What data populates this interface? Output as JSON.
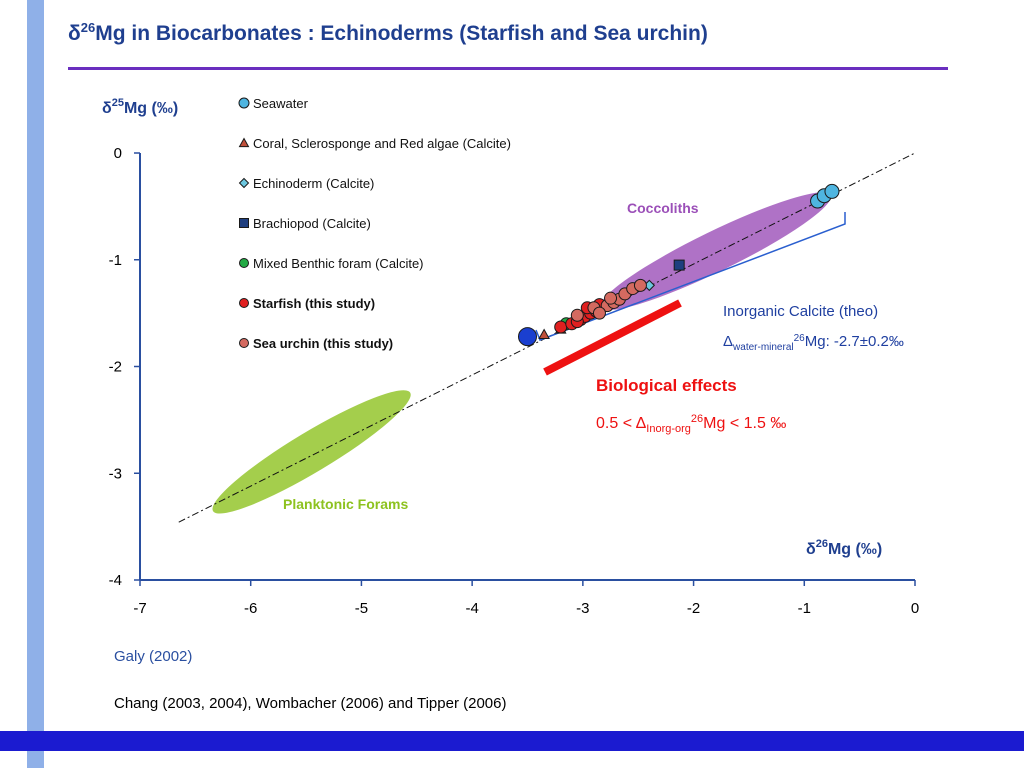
{
  "title": {
    "delta": "δ",
    "sup": "26",
    "rest": "Mg in Biocarbonates : Echinoderms (Starfish and Sea urchin)"
  },
  "references": [
    "Galy (2002)",
    "Chang (2003, 2004), Wombacher (2006) and Tipper (2006)"
  ],
  "chart_data": {
    "type": "scatter",
    "title": "δ26Mg in Biocarbonates : Echinoderms (Starfish and Sea urchin)",
    "xlabel": {
      "pre": "δ",
      "sup": "26",
      "post": "Mg (‰)"
    },
    "ylabel": {
      "pre": "δ",
      "sup": "25",
      "post": "Mg (‰)"
    },
    "xlim": [
      -7,
      0
    ],
    "ylim": [
      -4,
      0
    ],
    "xticks": [
      -7,
      -6,
      -5,
      -4,
      -3,
      -2,
      -1,
      0
    ],
    "yticks": [
      0,
      -1,
      -2,
      -3,
      -4
    ],
    "grid": false,
    "legend_position": "top-left",
    "reference_line": {
      "style": "dash-dot",
      "slope": 0.52,
      "x_range": [
        -6.65,
        0
      ]
    },
    "series": [
      {
        "name": "Seawater",
        "marker": "circle",
        "color": "#4fb5e0",
        "points": [
          [
            -0.88,
            -0.45
          ],
          [
            -0.82,
            -0.4
          ],
          [
            -0.75,
            -0.36
          ]
        ]
      },
      {
        "name": "Coral, Sclerosponge and Red algae  (Calcite)",
        "marker": "triangle",
        "color": "#c0503a",
        "points": [
          [
            -3.35,
            -1.7
          ],
          [
            -3.2,
            -1.65
          ]
        ]
      },
      {
        "name": "Echinoderm (Calcite)",
        "marker": "diamond",
        "color": "#6cc7df",
        "points": [
          [
            -2.4,
            -1.24
          ]
        ]
      },
      {
        "name": "Brachiopod (Calcite)",
        "marker": "square",
        "color": "#1f3f7f",
        "points": [
          [
            -2.13,
            -1.05
          ]
        ]
      },
      {
        "name": "Mixed Benthic foram (Calcite)",
        "marker": "circle",
        "color": "#22aa44",
        "points": [
          [
            -3.15,
            -1.6
          ]
        ]
      },
      {
        "name": "Starfish (this study)",
        "marker": "circle",
        "color": "#e02020",
        "points": [
          [
            -3.2,
            -1.63
          ],
          [
            -3.1,
            -1.6
          ],
          [
            -3.02,
            -1.56
          ],
          [
            -2.98,
            -1.53
          ],
          [
            -2.93,
            -1.5
          ],
          [
            -3.05,
            -1.58
          ],
          [
            -2.88,
            -1.48
          ],
          [
            -2.96,
            -1.45
          ],
          [
            -2.85,
            -1.42
          ]
        ]
      },
      {
        "name": "Sea urchin (this study)",
        "marker": "circle",
        "color": "#d46a60",
        "points": [
          [
            -2.9,
            -1.45
          ],
          [
            -2.78,
            -1.43
          ],
          [
            -2.72,
            -1.4
          ],
          [
            -2.67,
            -1.37
          ],
          [
            -2.62,
            -1.32
          ],
          [
            -2.55,
            -1.27
          ],
          [
            -2.48,
            -1.24
          ],
          [
            -2.85,
            -1.5
          ],
          [
            -2.75,
            -1.36
          ],
          [
            -3.05,
            -1.52
          ]
        ]
      },
      {
        "name": "",
        "marker": "circle",
        "color": "#1a3fd0",
        "points": [
          [
            -3.5,
            -1.72
          ]
        ]
      }
    ],
    "regions": [
      {
        "label": "Coccoliths",
        "color": "#9b4fb8"
      },
      {
        "label": "Planktonic Forams",
        "color": "#8dc21f"
      }
    ],
    "annotations": {
      "inorganic_title": "Inorganic Calcite (theo)",
      "inorganic_delta_symbol": "Δ",
      "inorganic_sub": "water-mineral",
      "inorganic_sup": "26",
      "inorganic_rest": "Mg: -2.7±0.2‰",
      "bio_title": "Biological effects",
      "bio_prefix": "0.5 < Δ",
      "bio_sub": "Inorg-org",
      "bio_sup": "26",
      "bio_rest": "Mg < 1.5 ‰"
    },
    "colors": {
      "axis": "#2a4fa0",
      "bio": "#ee1111",
      "bracket": "#2a5fcf"
    }
  }
}
